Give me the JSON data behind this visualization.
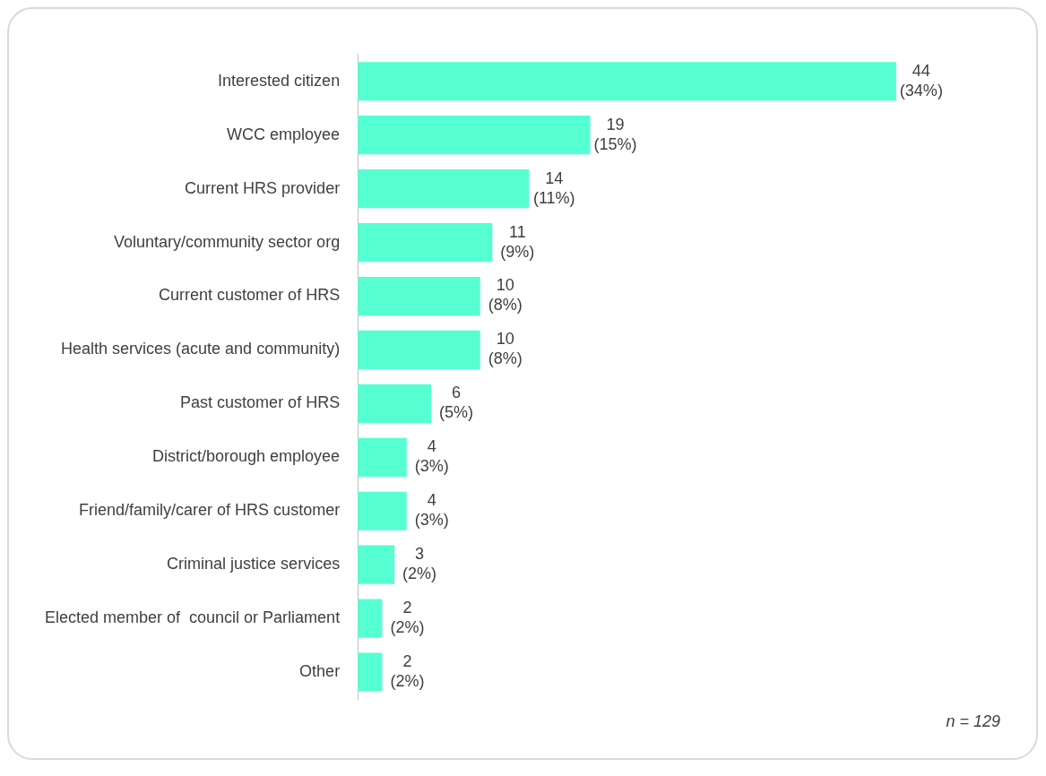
{
  "chart_data": {
    "type": "bar",
    "orientation": "horizontal",
    "categories": [
      "Interested citizen",
      "WCC employee",
      "Current HRS provider",
      "Voluntary/community sector org",
      "Current customer of HRS",
      "Health services (acute and community)",
      "Past customer of HRS",
      "District/borough employee",
      "Friend/family/carer of HRS customer",
      "Criminal justice services",
      "Elected member of  council or Parliament",
      "Other"
    ],
    "values": [
      44,
      19,
      14,
      11,
      10,
      10,
      6,
      4,
      4,
      3,
      2,
      2
    ],
    "value_labels": [
      "44\n(34%)",
      "19\n(15%)",
      "14\n(11%)",
      "11\n(9%)",
      "10\n(8%)",
      "10\n(8%)",
      "6\n(5%)",
      "4\n(3%)",
      "4\n(3%)",
      "3\n(2%)",
      "2\n(2%)",
      "2\n(2%)"
    ],
    "color": "#55ffd2",
    "grid": false,
    "legend": false,
    "tick_labels": "y",
    "annotations": [
      "n = 129"
    ]
  }
}
